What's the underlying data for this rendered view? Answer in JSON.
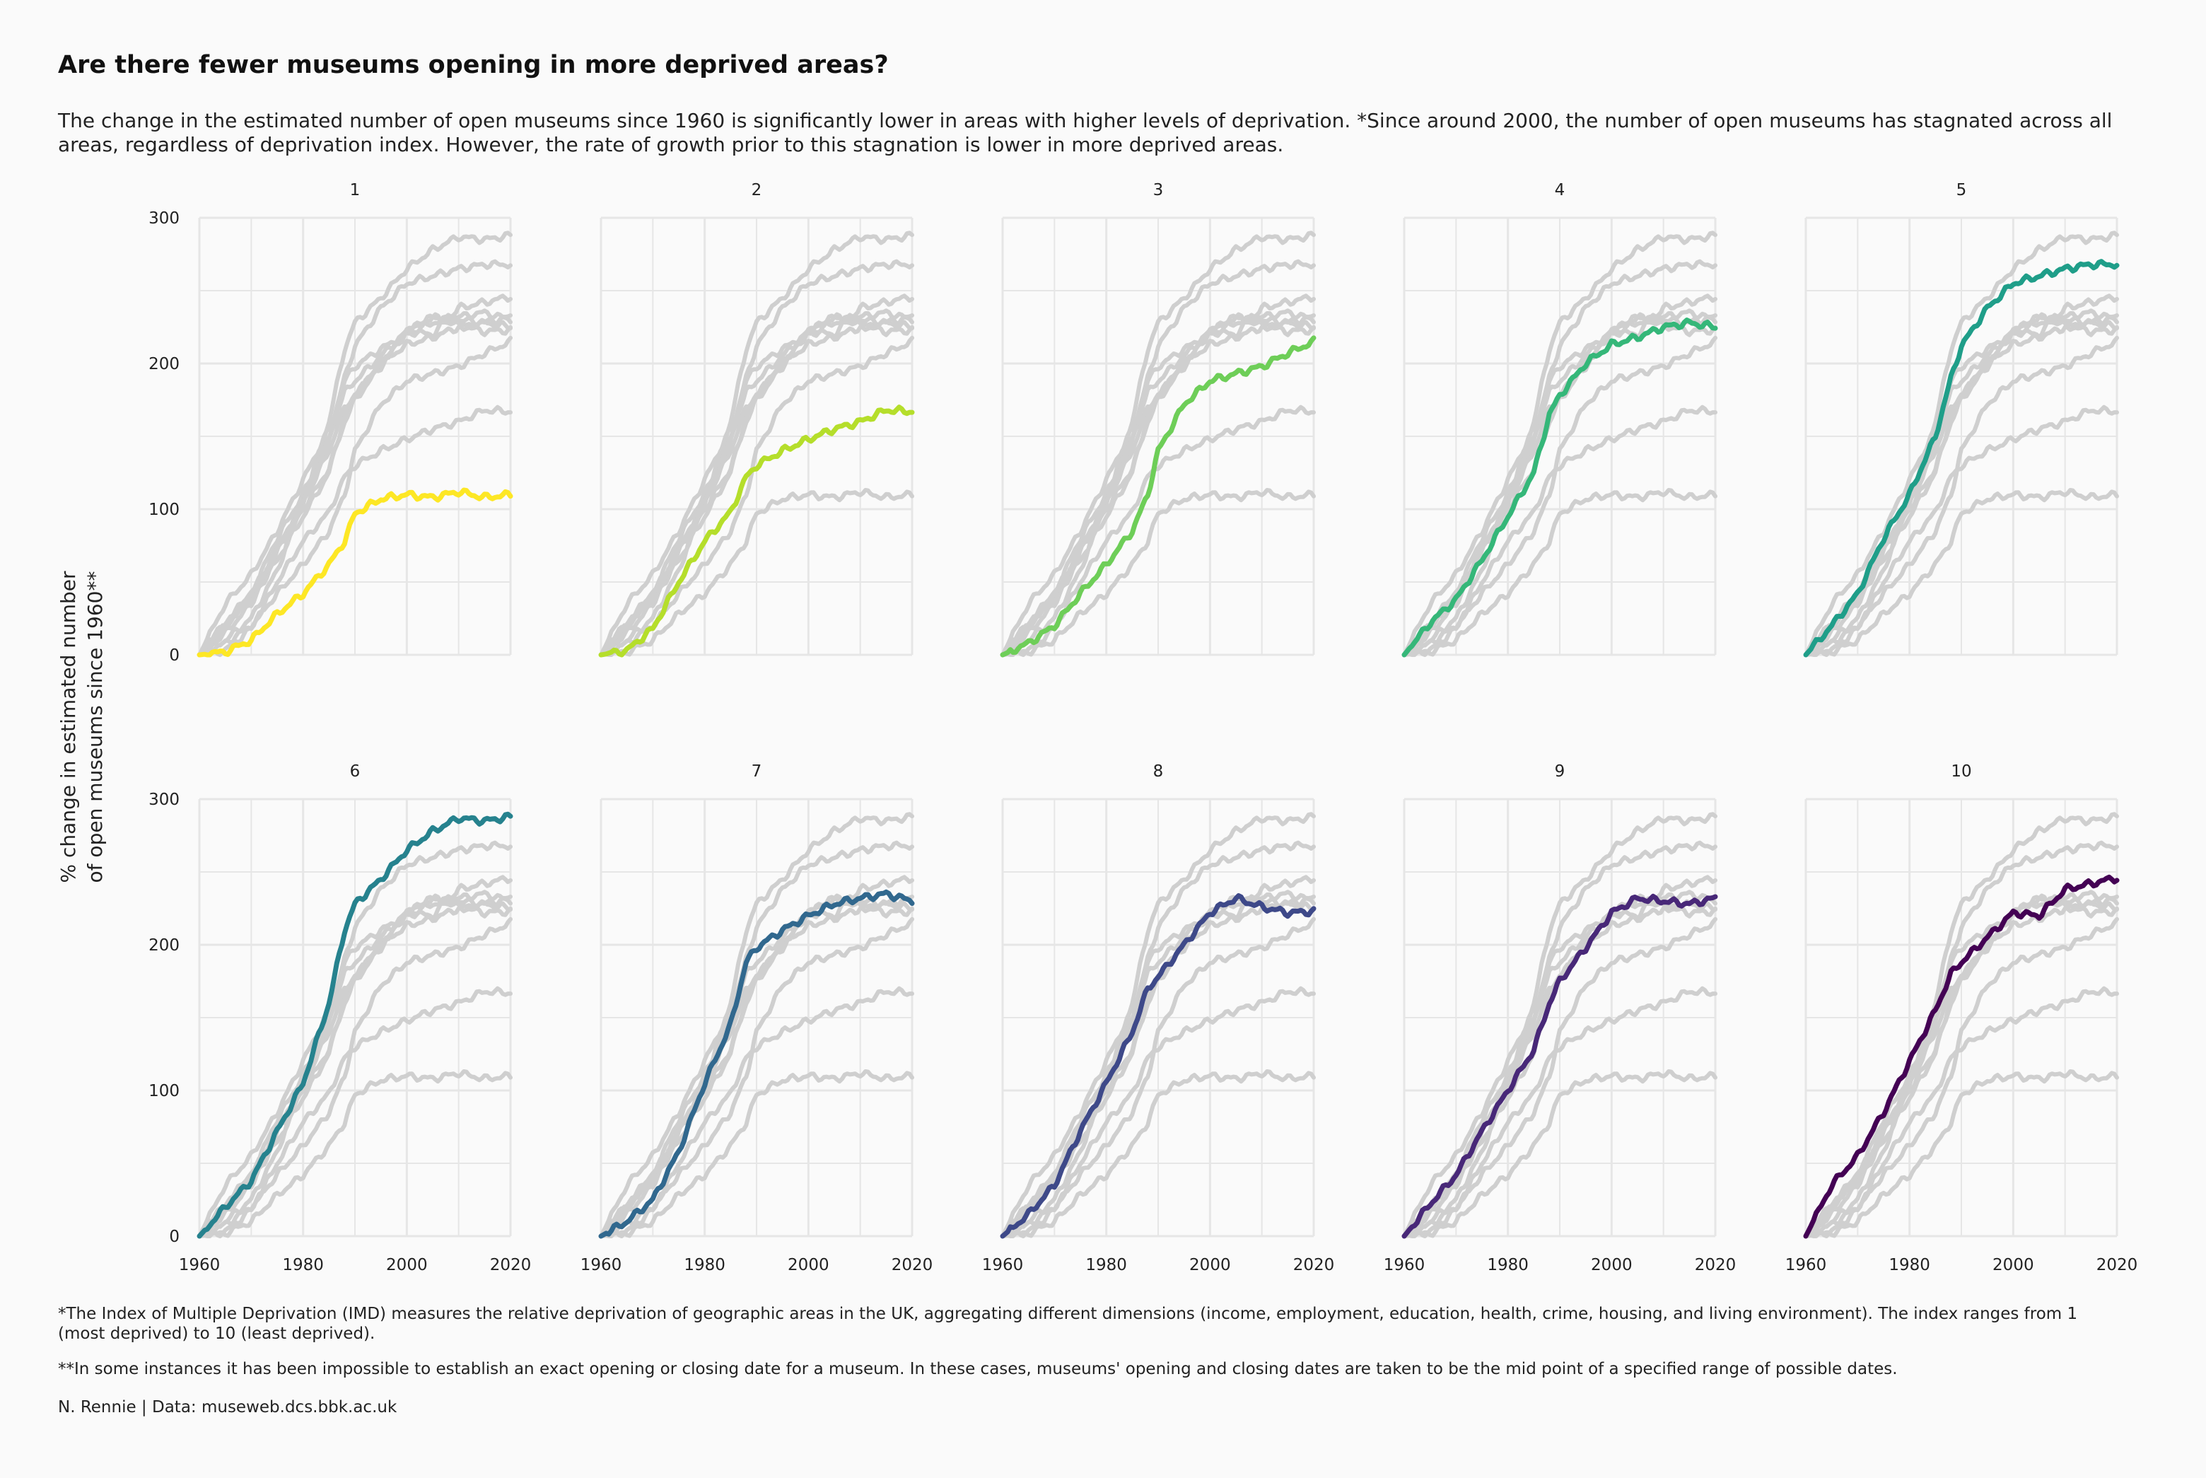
{
  "title": "Are there fewer museums opening in more deprived areas?",
  "subtitle": "The change in the estimated number of open museums since 1960 is significantly lower in areas with higher levels of deprivation. *Since around 2000, the number of open museums has stagnated across all areas, regardless of deprivation index. However, the rate of growth prior to this stagnation is lower in more deprived areas.",
  "footnotes": {
    "imd": "*The Index of Multiple Deprivation (IMD) measures the relative deprivation of geographic areas in the UK, aggregating different dimensions (income, employment, education, health, crime, housing, and living environment). The index ranges from 1 (most deprived) to 10 (least deprived).",
    "dates": "**In some instances it has been impossible to establish an exact opening or closing date for a museum. In these cases, museums' opening and closing dates are taken to be the mid point of a specified range of possible dates.",
    "source": "N. Rennie | Data: museweb.dcs.bbk.ac.uk"
  },
  "chart_data": {
    "type": "line",
    "facet_by": "IMD decile",
    "ylabel": "% change in estimated number of open museums since 1960**",
    "xlabel": "",
    "xlim": [
      1960,
      2020
    ],
    "ylim": [
      0,
      300
    ],
    "x_ticks": [
      1960,
      1980,
      2000,
      2020
    ],
    "y_ticks": [
      0,
      100,
      200,
      300
    ],
    "grid": true,
    "background_series_color": "#cfcfcf",
    "x_keypoints": [
      1960,
      1965,
      1970,
      1975,
      1980,
      1985,
      1988,
      1990,
      1995,
      2000,
      2005,
      2010,
      2015,
      2020
    ],
    "series": [
      {
        "name": "1",
        "color": "#fde725",
        "values": [
          0,
          2,
          10,
          28,
          42,
          62,
          78,
          97,
          107,
          110,
          108,
          112,
          108,
          110
        ]
      },
      {
        "name": "2",
        "color": "#b5de2b",
        "values": [
          0,
          3,
          18,
          50,
          78,
          98,
          122,
          130,
          140,
          148,
          155,
          160,
          168,
          167
        ]
      },
      {
        "name": "3",
        "color": "#6ece58",
        "values": [
          0,
          8,
          20,
          42,
          62,
          85,
          110,
          140,
          172,
          188,
          193,
          198,
          207,
          215
        ]
      },
      {
        "name": "4",
        "color": "#35b779",
        "values": [
          0,
          22,
          38,
          65,
          95,
          125,
          165,
          178,
          200,
          213,
          218,
          225,
          228,
          225
        ]
      },
      {
        "name": "5",
        "color": "#1f9e89",
        "values": [
          0,
          20,
          42,
          80,
          110,
          150,
          190,
          212,
          238,
          255,
          260,
          265,
          268,
          268
        ]
      },
      {
        "name": "6",
        "color": "#26828e",
        "values": [
          0,
          20,
          38,
          72,
          105,
          160,
          210,
          228,
          245,
          265,
          278,
          287,
          285,
          288
        ]
      },
      {
        "name": "7",
        "color": "#31688e",
        "values": [
          0,
          10,
          25,
          58,
          105,
          145,
          188,
          198,
          210,
          220,
          228,
          232,
          235,
          230
        ]
      },
      {
        "name": "8",
        "color": "#3e4989",
        "values": [
          0,
          15,
          35,
          72,
          105,
          140,
          170,
          178,
          200,
          222,
          232,
          226,
          222,
          223
        ]
      },
      {
        "name": "9",
        "color": "#482878",
        "values": [
          0,
          22,
          42,
          72,
          100,
          128,
          160,
          175,
          198,
          222,
          232,
          230,
          228,
          232
        ]
      },
      {
        "name": "10",
        "color": "#440154",
        "values": [
          0,
          35,
          55,
          85,
          120,
          155,
          180,
          188,
          205,
          222,
          220,
          238,
          242,
          246
        ]
      }
    ]
  }
}
